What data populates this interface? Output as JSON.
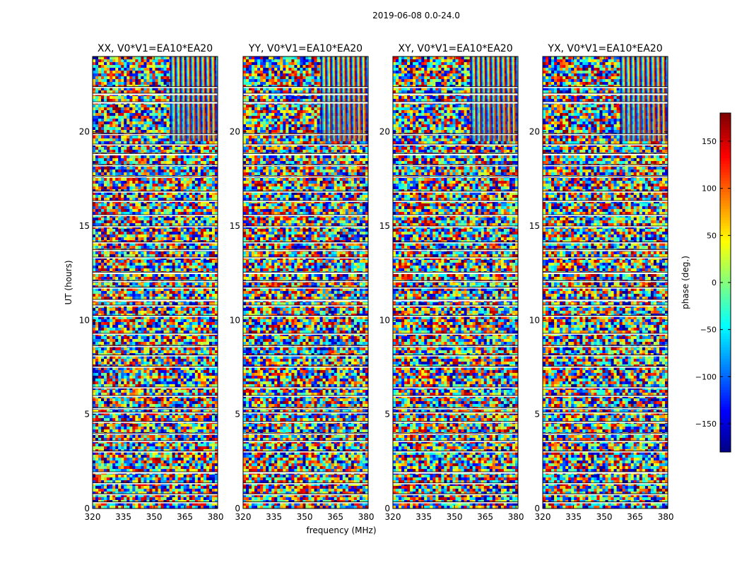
{
  "figure_title": "2019-06-08 0.0-24.0",
  "shared_xlabel": "frequency (MHz)",
  "chart_data": {
    "type": "heatmap",
    "title": "2019-06-08 0.0-24.0",
    "xlabel": "frequency (MHz)",
    "ylabel": "UT (hours)",
    "xlim": [
      320,
      381
    ],
    "ylim": [
      0,
      24
    ],
    "xticks": [
      320,
      335,
      350,
      365,
      380
    ],
    "yticks": [
      0,
      5,
      10,
      15,
      20
    ],
    "colorbar": {
      "label": "phase (deg.)",
      "colormap": "jet",
      "vmin": -180,
      "vmax": 180,
      "ticks": [
        150,
        100,
        50,
        0,
        -50,
        -100,
        -150
      ]
    },
    "panels": [
      {
        "title": "XX, V0*V1=EA10*EA20",
        "polarization": "XX"
      },
      {
        "title": "YY, V0*V1=EA10*EA20",
        "polarization": "YY"
      },
      {
        "title": "XY, V0*V1=EA10*EA20",
        "polarization": "XY"
      },
      {
        "title": "YX, V0*V1=EA10*EA20",
        "polarization": "YX"
      }
    ],
    "flagged_time_ranges_hours": [
      [
        0.3,
        0.35
      ],
      [
        0.72,
        0.78
      ],
      [
        1.3,
        1.36
      ],
      [
        1.85,
        1.95
      ],
      [
        3.0,
        3.05
      ],
      [
        3.55,
        3.6
      ],
      [
        3.95,
        4.0
      ],
      [
        4.55,
        4.62
      ],
      [
        5.05,
        5.12
      ],
      [
        5.3,
        5.35
      ],
      [
        5.95,
        6.0
      ],
      [
        6.4,
        6.45
      ],
      [
        7.5,
        7.55
      ],
      [
        8.1,
        8.15
      ],
      [
        8.6,
        8.65
      ],
      [
        9.25,
        9.3
      ],
      [
        10.2,
        10.25
      ],
      [
        10.75,
        10.8
      ],
      [
        11.0,
        11.1
      ],
      [
        11.7,
        11.75
      ],
      [
        12.05,
        12.1
      ],
      [
        12.45,
        12.55
      ],
      [
        13.3,
        13.35
      ],
      [
        13.7,
        13.75
      ],
      [
        14.1,
        14.15
      ],
      [
        14.95,
        15.0
      ],
      [
        15.55,
        15.6
      ],
      [
        16.3,
        16.35
      ],
      [
        16.8,
        16.85
      ],
      [
        17.6,
        17.65
      ],
      [
        18.2,
        18.25
      ],
      [
        18.75,
        18.85
      ],
      [
        19.3,
        19.35
      ],
      [
        19.85,
        19.9
      ],
      [
        21.5,
        21.6
      ],
      [
        21.95,
        22.05
      ],
      [
        22.35,
        22.4
      ]
    ]
  }
}
